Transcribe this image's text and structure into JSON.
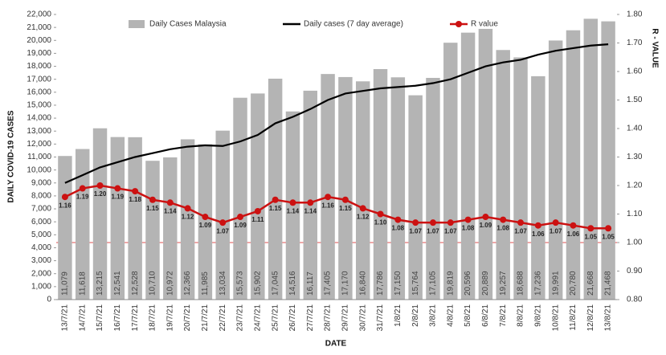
{
  "chart_data": {
    "type": "combo",
    "x_label": "DATE",
    "y_label": "DAILY COVID-19 CASES",
    "y2_label": "R - VALUE",
    "categories": [
      "13/7/21",
      "14/7/21",
      "15/7/21",
      "16/7/21",
      "17/7/21",
      "18/7/21",
      "19/7/21",
      "20/7/21",
      "21/7/21",
      "22/7/21",
      "23/7/21",
      "24/7/21",
      "25/7/21",
      "26/7/21",
      "27/7/21",
      "28/7/21",
      "29/7/21",
      "30/7/21",
      "31/7/21",
      "1/8/21",
      "2/8/21",
      "3/8/21",
      "4/8/21",
      "5/8/21",
      "6/8/21",
      "7/8/21",
      "8/8/21",
      "9/8/21",
      "10/8/21",
      "11/8/21",
      "12/8/21",
      "13/8/21"
    ],
    "series": [
      {
        "name": "Daily Cases Malaysia",
        "type": "bar",
        "axis": "y",
        "color": "#b4b4b4",
        "values": [
          11079,
          11618,
          13215,
          12541,
          12528,
          10710,
          10972,
          12366,
          11985,
          13034,
          15573,
          15902,
          17045,
          14516,
          16117,
          17405,
          17170,
          16840,
          17786,
          17150,
          15764,
          17105,
          19819,
          20596,
          20889,
          19257,
          18688,
          17236,
          19991,
          20780,
          21668,
          21468
        ],
        "value_labels": [
          "11,079",
          "11,618",
          "13,215",
          "12,541",
          "12,528",
          "10,710",
          "10,972",
          "12,366",
          "11,985",
          "13,034",
          "15,573",
          "15,902",
          "17,045",
          "14,516",
          "16,117",
          "17,405",
          "17,170",
          "16,840",
          "17,786",
          "17,150",
          "15,764",
          "17,105",
          "19,819",
          "20,596",
          "20,889",
          "19,257",
          "18,688",
          "17,236",
          "19,991",
          "20,780",
          "21,668",
          "21,468"
        ]
      },
      {
        "name": "Daily cases (7 day average)",
        "type": "line",
        "axis": "y",
        "color": "#000000",
        "values": [
          9000,
          9600,
          10200,
          10600,
          11000,
          11300,
          11600,
          11800,
          11900,
          11850,
          12200,
          12700,
          13600,
          14100,
          14700,
          15400,
          15900,
          16100,
          16300,
          16400,
          16500,
          16700,
          17000,
          17500,
          18000,
          18300,
          18500,
          18900,
          19200,
          19400,
          19600,
          19700
        ]
      },
      {
        "name": "R value",
        "type": "line",
        "axis": "y2",
        "color": "#cc1111",
        "markers": true,
        "values": [
          1.16,
          1.19,
          1.2,
          1.19,
          1.18,
          1.15,
          1.14,
          1.12,
          1.09,
          1.07,
          1.09,
          1.11,
          1.15,
          1.14,
          1.14,
          1.16,
          1.15,
          1.12,
          1.1,
          1.08,
          1.07,
          1.07,
          1.07,
          1.08,
          1.09,
          1.08,
          1.07,
          1.06,
          1.07,
          1.06,
          1.05,
          1.05
        ],
        "value_labels": [
          "1.16",
          "1.19",
          "1.20",
          "1.19",
          "1.18",
          "1.15",
          "1.14",
          "1.12",
          "1.09",
          "1.07",
          "1.09",
          "1.11",
          "1.15",
          "1.14",
          "1.14",
          "1.16",
          "1.15",
          "1.12",
          "1.10",
          "1.08",
          "1.07",
          "1.07",
          "1.07",
          "1.08",
          "1.09",
          "1.08",
          "1.07",
          "1.06",
          "1.07",
          "1.06",
          "1.05",
          "1.05"
        ]
      }
    ],
    "reference_line": {
      "axis": "y2",
      "value": 1.0,
      "color": "#e05050"
    },
    "ylim": [
      0,
      22000
    ],
    "yticks": [
      0,
      {
        "value": 1000,
        "label": "1,000"
      },
      {
        "value": 2000,
        "label": "2,000"
      },
      {
        "value": 3000,
        "label": "3,000"
      },
      {
        "value": 4000,
        "label": "4,000"
      },
      {
        "value": 5000,
        "label": "5,000"
      },
      {
        "value": 6000,
        "label": "6,000"
      },
      {
        "value": 7000,
        "label": "7,000"
      },
      {
        "value": 8000,
        "label": "8,000"
      },
      {
        "value": 9000,
        "label": "9,000"
      },
      {
        "value": 10000,
        "label": "10,000"
      },
      {
        "value": 11000,
        "label": "11,000"
      },
      {
        "value": 12000,
        "label": "12,000"
      },
      {
        "value": 13000,
        "label": "13,000"
      },
      {
        "value": 14000,
        "label": "14,000"
      },
      {
        "value": 15000,
        "label": "15,000"
      },
      {
        "value": 16000,
        "label": "16,000"
      },
      {
        "value": 17000,
        "label": "17,000"
      },
      {
        "value": 18000,
        "label": "18,000"
      },
      {
        "value": 19000,
        "label": "19,000"
      },
      {
        "value": 20000,
        "label": "20,000"
      },
      {
        "value": 21000,
        "label": "21,000"
      },
      {
        "value": 22000,
        "label": "22,000"
      }
    ],
    "y2lim": [
      0.8,
      1.8
    ],
    "y2ticks": [
      {
        "value": 0.8,
        "label": "0.80"
      },
      {
        "value": 0.9,
        "label": "0.90"
      },
      {
        "value": 1.0,
        "label": "1.00"
      },
      {
        "value": 1.1,
        "label": "1.10"
      },
      {
        "value": 1.2,
        "label": "1.20"
      },
      {
        "value": 1.3,
        "label": "1.30"
      },
      {
        "value": 1.4,
        "label": "1.40"
      },
      {
        "value": 1.5,
        "label": "1.50"
      },
      {
        "value": 1.6,
        "label": "1.60"
      },
      {
        "value": 1.7,
        "label": "1.70"
      },
      {
        "value": 1.8,
        "label": "1.80"
      }
    ]
  }
}
